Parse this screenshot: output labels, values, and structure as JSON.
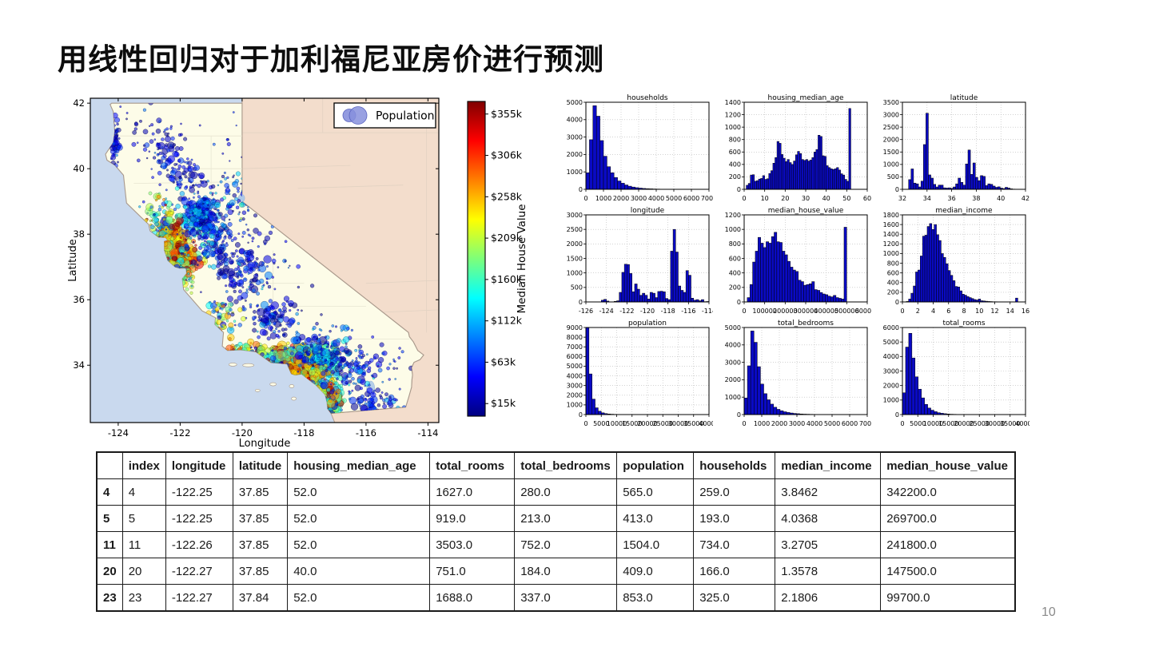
{
  "slide": {
    "title": "用线性回归对于加利福尼亚房价进行预测",
    "page_number": "10"
  },
  "chart_data": {
    "map": {
      "type": "scatter",
      "xlabel": "Longitude",
      "ylabel": "Latitude",
      "xlim": [
        -124.9,
        -113.65
      ],
      "ylim": [
        32.25,
        42.15
      ],
      "xticks": [
        -124,
        -122,
        -120,
        -118,
        -116,
        -114
      ],
      "yticks": [
        34,
        36,
        38,
        40,
        42
      ],
      "legend_label": "Population",
      "colorbar": {
        "label": "Median House Value",
        "tick_labels": [
          "$15k",
          "$63k",
          "$112k",
          "$160k",
          "$209k",
          "$258k",
          "$306k",
          "$355k"
        ],
        "colormap": "jet"
      },
      "clusters": [
        {
          "lon": -124.12,
          "lat": 40.85,
          "n": 70,
          "sx": 0.1,
          "sy": 0.35,
          "v": 0.1,
          "vs": 0.07,
          "rmin": 1.2,
          "rmax": 4
        },
        {
          "lon": -122.9,
          "lat": 40.9,
          "n": 40,
          "sx": 0.45,
          "sy": 0.45,
          "v": 0.08,
          "vs": 0.06,
          "rmin": 1,
          "rmax": 3.5
        },
        {
          "lon": -122.3,
          "lat": 40.5,
          "n": 50,
          "sx": 0.25,
          "sy": 0.35,
          "v": 0.1,
          "vs": 0.07,
          "rmin": 1.2,
          "rmax": 4.5
        },
        {
          "lon": -121.85,
          "lat": 39.7,
          "n": 60,
          "sx": 0.3,
          "sy": 0.35,
          "v": 0.1,
          "vs": 0.07,
          "rmin": 1.2,
          "rmax": 4.5
        },
        {
          "lon": -121.4,
          "lat": 38.58,
          "n": 190,
          "sx": 0.3,
          "sy": 0.28,
          "v": 0.2,
          "vs": 0.12,
          "rmin": 1.2,
          "rmax": 6
        },
        {
          "lon": -120.9,
          "lat": 38.9,
          "n": 90,
          "sx": 0.55,
          "sy": 0.5,
          "v": 0.15,
          "vs": 0.1,
          "rmin": 1,
          "rmax": 4
        },
        {
          "lon": -122.28,
          "lat": 37.8,
          "n": 330,
          "sx": 0.22,
          "sy": 0.3,
          "v": 0.65,
          "vs": 0.22,
          "rmin": 1.3,
          "rmax": 6
        },
        {
          "lon": -121.95,
          "lat": 37.32,
          "n": 200,
          "sx": 0.28,
          "sy": 0.22,
          "v": 0.68,
          "vs": 0.2,
          "rmin": 1.3,
          "rmax": 6
        },
        {
          "lon": -122.6,
          "lat": 38.5,
          "n": 90,
          "sx": 0.3,
          "sy": 0.35,
          "v": 0.45,
          "vs": 0.2,
          "rmin": 1.2,
          "rmax": 5
        },
        {
          "lon": -121.9,
          "lat": 36.75,
          "n": 90,
          "sx": 0.22,
          "sy": 0.28,
          "v": 0.5,
          "vs": 0.2,
          "rmin": 1.2,
          "rmax": 5
        },
        {
          "lon": -121.0,
          "lat": 37.7,
          "n": 130,
          "sx": 0.4,
          "sy": 0.4,
          "v": 0.18,
          "vs": 0.1,
          "rmin": 1.2,
          "rmax": 5
        },
        {
          "lon": -119.9,
          "lat": 36.75,
          "n": 150,
          "sx": 0.45,
          "sy": 0.55,
          "v": 0.12,
          "vs": 0.08,
          "rmin": 1.2,
          "rmax": 5
        },
        {
          "lon": -119.05,
          "lat": 35.4,
          "n": 100,
          "sx": 0.4,
          "sy": 0.3,
          "v": 0.12,
          "vs": 0.08,
          "rmin": 1.2,
          "rmax": 5
        },
        {
          "lon": -120.65,
          "lat": 35.35,
          "n": 70,
          "sx": 0.3,
          "sy": 0.4,
          "v": 0.45,
          "vs": 0.18,
          "rmin": 1.2,
          "rmax": 4.5
        },
        {
          "lon": -119.9,
          "lat": 34.44,
          "n": 90,
          "sx": 0.5,
          "sy": 0.12,
          "v": 0.55,
          "vs": 0.2,
          "rmin": 1.2,
          "rmax": 5
        },
        {
          "lon": -118.25,
          "lat": 34.06,
          "n": 520,
          "sx": 0.42,
          "sy": 0.28,
          "v": 0.55,
          "vs": 0.28,
          "rmin": 1.3,
          "rmax": 7
        },
        {
          "lon": -117.45,
          "lat": 34.05,
          "n": 260,
          "sx": 0.35,
          "sy": 0.3,
          "v": 0.3,
          "vs": 0.18,
          "rmin": 1.3,
          "rmax": 6
        },
        {
          "lon": -117.85,
          "lat": 33.67,
          "n": 220,
          "sx": 0.28,
          "sy": 0.2,
          "v": 0.62,
          "vs": 0.22,
          "rmin": 1.3,
          "rmax": 6
        },
        {
          "lon": -117.15,
          "lat": 32.9,
          "n": 230,
          "sx": 0.2,
          "sy": 0.3,
          "v": 0.5,
          "vs": 0.24,
          "rmin": 1.3,
          "rmax": 6
        },
        {
          "lon": -116.3,
          "lat": 33.75,
          "n": 90,
          "sx": 0.55,
          "sy": 0.4,
          "v": 0.15,
          "vs": 0.1,
          "rmin": 1.2,
          "rmax": 5
        },
        {
          "lon": -117.3,
          "lat": 34.6,
          "n": 80,
          "sx": 0.5,
          "sy": 0.3,
          "v": 0.18,
          "vs": 0.1,
          "rmin": 1.2,
          "rmax": 5
        },
        {
          "lon": -115.55,
          "lat": 32.85,
          "n": 60,
          "sx": 0.4,
          "sy": 0.22,
          "v": 0.12,
          "vs": 0.08,
          "rmin": 1.2,
          "rmax": 5
        },
        {
          "lon": -119.8,
          "lat": 38.3,
          "n": 120,
          "sx": 1.6,
          "sy": 1.9,
          "v": 0.1,
          "vs": 0.07,
          "rmin": 0.9,
          "rmax": 2.8
        },
        {
          "lon": -116.8,
          "lat": 34.2,
          "n": 60,
          "sx": 1.2,
          "sy": 0.5,
          "v": 0.12,
          "vs": 0.08,
          "rmin": 1,
          "rmax": 3.5
        },
        {
          "lon": -120.0,
          "lat": 39.2,
          "n": 50,
          "sx": 0.35,
          "sy": 0.3,
          "v": 0.22,
          "vs": 0.12,
          "rmin": 1,
          "rmax": 4
        }
      ]
    },
    "histograms": [
      {
        "title": "households",
        "ylim": [
          0,
          5000
        ],
        "yticks": [
          0,
          1000,
          2000,
          3000,
          4000,
          5000
        ],
        "xlim": [
          0,
          7000
        ],
        "xticks": [
          0,
          1000,
          2000,
          3000,
          4000,
          5000,
          6000,
          7000
        ],
        "data_range": [
          0,
          6200
        ],
        "values": [
          950,
          2850,
          4800,
          4200,
          2800,
          1900,
          1300,
          950,
          680,
          480,
          350,
          250,
          180,
          130,
          95,
          70,
          50,
          38,
          28,
          20,
          15,
          11,
          8,
          6,
          4,
          3,
          2,
          2,
          1,
          1,
          1
        ]
      },
      {
        "title": "housing_median_age",
        "ylim": [
          0,
          1400
        ],
        "yticks": [
          0,
          200,
          400,
          600,
          800,
          1000,
          1200,
          1400
        ],
        "xlim": [
          0,
          60
        ],
        "xticks": [
          0,
          10,
          20,
          30,
          40,
          50,
          60
        ],
        "data_range": [
          1,
          52
        ],
        "values": [
          65,
          95,
          230,
          235,
          130,
          140,
          165,
          175,
          220,
          160,
          170,
          255,
          300,
          420,
          510,
          770,
          740,
          560,
          500,
          445,
          480,
          430,
          400,
          455,
          555,
          610,
          575,
          480,
          465,
          480,
          455,
          470,
          510,
          600,
          640,
          870,
          850,
          540,
          530,
          380,
          350,
          330,
          320,
          330,
          350,
          310,
          250,
          230,
          160,
          130,
          1300
        ]
      },
      {
        "title": "latitude",
        "ylim": [
          0,
          3500
        ],
        "yticks": [
          0,
          500,
          1000,
          1500,
          2000,
          2500,
          3000,
          3500
        ],
        "xlim": [
          32,
          42
        ],
        "xticks": [
          32,
          34,
          36,
          38,
          40,
          42
        ],
        "data_range": [
          32.5,
          41.95
        ],
        "values": [
          390,
          820,
          250,
          220,
          95,
          330,
          1800,
          3060,
          580,
          450,
          200,
          95,
          170,
          170,
          60,
          50,
          60,
          40,
          95,
          220,
          450,
          280,
          170,
          1020,
          1580,
          600,
          1060,
          480,
          350,
          550,
          520,
          150,
          220,
          200,
          130,
          80,
          100,
          50,
          30,
          80,
          50,
          20,
          10,
          8,
          5,
          3,
          2
        ]
      },
      {
        "title": "longitude",
        "ylim": [
          0,
          3000
        ],
        "yticks": [
          0,
          500,
          1000,
          1500,
          2000,
          2500,
          3000
        ],
        "xlim": [
          -126,
          -114
        ],
        "xticks": [
          -126,
          -124,
          -122,
          -120,
          -118,
          -116,
          -114
        ],
        "data_range": [
          -126,
          -114
        ],
        "values": [
          0,
          0,
          0,
          0,
          0,
          0,
          60,
          90,
          30,
          0,
          0,
          20,
          40,
          330,
          1020,
          1300,
          1290,
          980,
          350,
          620,
          440,
          230,
          300,
          230,
          100,
          330,
          300,
          150,
          360,
          370,
          350,
          120,
          80,
          1750,
          2500,
          1720,
          550,
          400,
          330,
          1080,
          920,
          130,
          60,
          80,
          40,
          80,
          10,
          15
        ]
      },
      {
        "title": "median_house_value",
        "ylim": [
          0,
          1200
        ],
        "yticks": [
          0,
          200,
          400,
          600,
          800,
          1000,
          1200
        ],
        "xlim": [
          0,
          600000
        ],
        "xticks": [
          0,
          100000,
          200000,
          300000,
          400000,
          500000,
          600000
        ],
        "data_range": [
          15000,
          500000
        ],
        "values": [
          60,
          240,
          550,
          700,
          890,
          810,
          750,
          830,
          810,
          900,
          960,
          830,
          820,
          700,
          650,
          560,
          480,
          440,
          420,
          300,
          280,
          230,
          240,
          250,
          280,
          170,
          160,
          130,
          110,
          100,
          80,
          70,
          90,
          60,
          50,
          40,
          1030
        ]
      },
      {
        "title": "median_income",
        "ylim": [
          0,
          1800
        ],
        "yticks": [
          0,
          200,
          400,
          600,
          800,
          1000,
          1200,
          1400,
          1600,
          1800
        ],
        "xlim": [
          0,
          16
        ],
        "xticks": [
          0,
          2,
          4,
          6,
          8,
          10,
          12,
          14,
          16
        ],
        "data_range": [
          0.5,
          15.0
        ],
        "values": [
          10,
          60,
          180,
          330,
          620,
          660,
          950,
          1360,
          1380,
          1560,
          1620,
          1500,
          1600,
          1390,
          1270,
          1000,
          920,
          790,
          650,
          550,
          440,
          320,
          310,
          230,
          160,
          140,
          110,
          90,
          70,
          50,
          40,
          60,
          25,
          20,
          15,
          10,
          8,
          5,
          5,
          3,
          3,
          2,
          2,
          1,
          1,
          1,
          0,
          80
        ]
      },
      {
        "title": "population",
        "ylim": [
          0,
          9000
        ],
        "yticks": [
          0,
          1000,
          2000,
          3000,
          4000,
          5000,
          6000,
          7000,
          8000,
          9000
        ],
        "xlim": [
          0,
          40000
        ],
        "xticks": [
          0,
          5000,
          10000,
          15000,
          20000,
          25000,
          30000,
          35000,
          40000
        ],
        "data_range": [
          0,
          36000
        ],
        "values": [
          9000,
          4200,
          1600,
          700,
          350,
          180,
          100,
          60,
          40,
          25,
          15,
          10,
          8,
          6,
          5,
          4,
          3,
          2,
          2,
          1,
          1,
          1,
          1,
          0,
          0,
          1,
          0,
          0,
          0,
          0,
          0,
          0,
          0,
          0,
          0,
          1
        ]
      },
      {
        "title": "total_bedrooms",
        "ylim": [
          0,
          5000
        ],
        "yticks": [
          0,
          1000,
          2000,
          3000,
          4000,
          5000
        ],
        "xlim": [
          0,
          7000
        ],
        "xticks": [
          0,
          1000,
          2000,
          3000,
          4000,
          5000,
          6000,
          7000
        ],
        "data_range": [
          0,
          6500
        ],
        "values": [
          950,
          2800,
          4800,
          4150,
          2750,
          1750,
          1200,
          850,
          600,
          420,
          300,
          220,
          160,
          120,
          90,
          65,
          50,
          35,
          25,
          20,
          15,
          10,
          8,
          6,
          4,
          3,
          2,
          2,
          1,
          1,
          1,
          0,
          0,
          0,
          1
        ]
      },
      {
        "title": "total_rooms",
        "ylim": [
          0,
          6000
        ],
        "yticks": [
          0,
          1000,
          2000,
          3000,
          4000,
          5000,
          6000
        ],
        "xlim": [
          0,
          40000
        ],
        "xticks": [
          0,
          5000,
          10000,
          15000,
          20000,
          25000,
          30000,
          35000,
          40000
        ],
        "data_range": [
          0,
          39000
        ],
        "values": [
          1500,
          4650,
          5600,
          3900,
          2600,
          1750,
          1150,
          700,
          450,
          300,
          200,
          130,
          90,
          60,
          40,
          25,
          18,
          12,
          8,
          6,
          4,
          3,
          2,
          2,
          1,
          1,
          1,
          0,
          0,
          1,
          0,
          0,
          0,
          0,
          0,
          0,
          0,
          1
        ]
      }
    ],
    "table": {
      "columns": [
        "",
        "index",
        "longitude",
        "latitude",
        "housing_median_age",
        "total_rooms",
        "total_bedrooms",
        "population",
        "households",
        "median_income",
        "median_house_value"
      ],
      "rows": [
        [
          "4",
          "4",
          "-122.25",
          "37.85",
          "52.0",
          "1627.0",
          "280.0",
          "565.0",
          "259.0",
          "3.8462",
          "342200.0"
        ],
        [
          "5",
          "5",
          "-122.25",
          "37.85",
          "52.0",
          "919.0",
          "213.0",
          "413.0",
          "193.0",
          "4.0368",
          "269700.0"
        ],
        [
          "11",
          "11",
          "-122.26",
          "37.85",
          "52.0",
          "3503.0",
          "752.0",
          "1504.0",
          "734.0",
          "3.2705",
          "241800.0"
        ],
        [
          "20",
          "20",
          "-122.27",
          "37.85",
          "40.0",
          "751.0",
          "184.0",
          "409.0",
          "166.0",
          "1.3578",
          "147500.0"
        ],
        [
          "23",
          "23",
          "-122.27",
          "37.84",
          "52.0",
          "1688.0",
          "337.0",
          "853.0",
          "325.0",
          "2.1806",
          "99700.0"
        ]
      ]
    }
  }
}
